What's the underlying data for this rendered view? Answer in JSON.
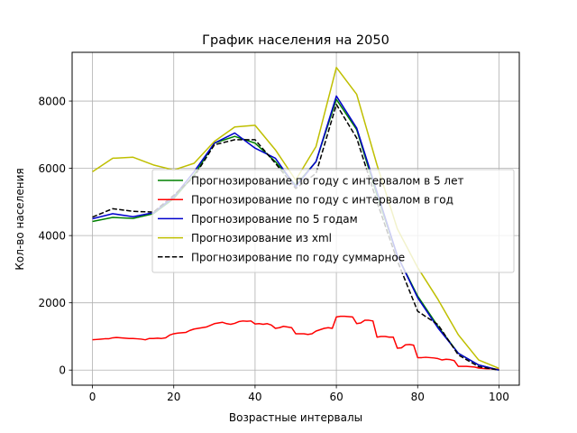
{
  "chart_data": {
    "type": "line",
    "title": "График населения на 2050",
    "xlabel": "Возрастные интервалы",
    "ylabel": "Кол-во населения",
    "xlim": [
      -5,
      105
    ],
    "ylim": [
      -450,
      9450
    ],
    "xticks": [
      0,
      20,
      40,
      60,
      80,
      100
    ],
    "yticks": [
      0,
      2000,
      4000,
      6000,
      8000
    ],
    "grid": true,
    "legend_position": "center-right",
    "series": [
      {
        "name": "Прогнозирование по году с интервалом в 5 лет",
        "color": "#008000",
        "dash": "solid",
        "x": [
          0,
          5,
          10,
          15,
          20,
          25,
          30,
          35,
          40,
          45,
          50,
          55,
          60,
          65,
          70,
          75,
          80,
          85,
          90,
          95,
          100
        ],
        "y": [
          4420,
          4540,
          4510,
          4650,
          5100,
          5800,
          6750,
          6950,
          6750,
          6200,
          5500,
          6200,
          8050,
          7150,
          5200,
          3400,
          2200,
          1300,
          500,
          150,
          0
        ]
      },
      {
        "name": "Прогнозирование по году с интервалом в год",
        "color": "#ff0000",
        "dash": "solid",
        "x": [
          0,
          1,
          2,
          3,
          4,
          5,
          6,
          7,
          8,
          9,
          10,
          11,
          12,
          13,
          14,
          15,
          16,
          17,
          18,
          19,
          20,
          21,
          22,
          23,
          24,
          25,
          26,
          27,
          28,
          29,
          30,
          31,
          32,
          33,
          34,
          35,
          36,
          37,
          38,
          39,
          40,
          41,
          42,
          43,
          44,
          45,
          46,
          47,
          48,
          49,
          50,
          51,
          52,
          53,
          54,
          55,
          56,
          57,
          58,
          59,
          60,
          61,
          62,
          63,
          64,
          65,
          66,
          67,
          68,
          69,
          70,
          71,
          72,
          73,
          74,
          75,
          76,
          77,
          78,
          79,
          80,
          81,
          82,
          83,
          84,
          85,
          86,
          87,
          88,
          89,
          90,
          91,
          92,
          93,
          94,
          95,
          96,
          97,
          98,
          99,
          100
        ],
        "y": [
          900,
          910,
          920,
          930,
          930,
          960,
          970,
          960,
          950,
          940,
          940,
          930,
          920,
          900,
          940,
          940,
          950,
          940,
          960,
          1040,
          1080,
          1100,
          1110,
          1120,
          1180,
          1220,
          1240,
          1260,
          1280,
          1330,
          1380,
          1400,
          1420,
          1380,
          1360,
          1390,
          1440,
          1460,
          1450,
          1460,
          1370,
          1380,
          1360,
          1380,
          1340,
          1240,
          1260,
          1300,
          1280,
          1260,
          1080,
          1080,
          1080,
          1060,
          1080,
          1160,
          1200,
          1240,
          1260,
          1240,
          1580,
          1600,
          1600,
          1590,
          1580,
          1380,
          1400,
          1480,
          1480,
          1460,
          980,
          1000,
          1000,
          980,
          980,
          650,
          660,
          750,
          760,
          740,
          370,
          370,
          380,
          370,
          360,
          340,
          300,
          320,
          310,
          280,
          110,
          110,
          110,
          100,
          90,
          60,
          50,
          40,
          40,
          30,
          20
        ]
      },
      {
        "name": "Прогнозирование по 5 годам",
        "color": "#0000cc",
        "dash": "solid",
        "x": [
          0,
          5,
          10,
          15,
          20,
          25,
          30,
          35,
          40,
          45,
          50,
          55,
          60,
          65,
          70,
          75,
          80,
          85,
          90,
          95,
          100
        ],
        "y": [
          4500,
          4650,
          4560,
          4680,
          5150,
          5900,
          6750,
          7050,
          6600,
          6300,
          5450,
          6200,
          8150,
          7200,
          5300,
          3400,
          2150,
          1250,
          500,
          150,
          0
        ]
      },
      {
        "name": "Прогнозирование из xml",
        "color": "#bfbf00",
        "dash": "solid",
        "x": [
          0,
          5,
          10,
          15,
          20,
          25,
          30,
          35,
          40,
          45,
          50,
          55,
          60,
          65,
          70,
          75,
          80,
          85,
          90,
          95,
          100
        ],
        "y": [
          5900,
          6300,
          6330,
          6100,
          5950,
          6150,
          6800,
          7230,
          7280,
          6550,
          5650,
          6650,
          9000,
          8200,
          6100,
          4200,
          3050,
          2100,
          1050,
          300,
          50
        ]
      },
      {
        "name": "Прогнозирование по году суммарное",
        "color": "#000000",
        "dash": "dashed",
        "x": [
          0,
          5,
          10,
          15,
          20,
          25,
          30,
          35,
          40,
          45,
          50,
          55,
          60,
          65,
          70,
          75,
          80,
          85,
          90,
          95,
          100
        ],
        "y": [
          4550,
          4800,
          4720,
          4700,
          5200,
          5750,
          6700,
          6850,
          6850,
          6150,
          5400,
          5850,
          7900,
          6900,
          5000,
          3250,
          1750,
          1350,
          450,
          100,
          0
        ]
      }
    ]
  }
}
